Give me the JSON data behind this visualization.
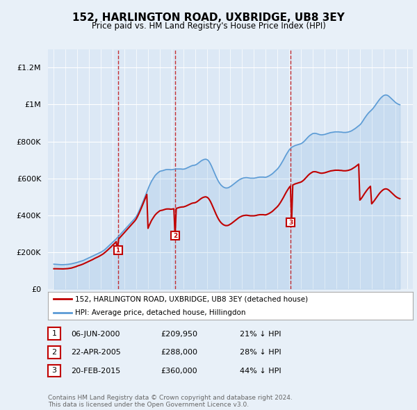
{
  "title": "152, HARLINGTON ROAD, UXBRIDGE, UB8 3EY",
  "subtitle": "Price paid vs. HM Land Registry's House Price Index (HPI)",
  "background_color": "#e8f0f8",
  "plot_bg_color": "#dce8f5",
  "legend_label_red": "152, HARLINGTON ROAD, UXBRIDGE, UB8 3EY (detached house)",
  "legend_label_blue": "HPI: Average price, detached house, Hillingdon",
  "footer": "Contains HM Land Registry data © Crown copyright and database right 2024.\nThis data is licensed under the Open Government Licence v3.0.",
  "transactions": [
    {
      "num": 1,
      "date": "06-JUN-2000",
      "price": 209950,
      "pct": "21%",
      "dir": "↓"
    },
    {
      "num": 2,
      "date": "22-APR-2005",
      "price": 288000,
      "pct": "28%",
      "dir": "↓"
    },
    {
      "num": 3,
      "date": "20-FEB-2015",
      "price": 360000,
      "pct": "44%",
      "dir": "↓"
    }
  ],
  "transaction_years": [
    2000.44,
    2005.31,
    2015.13
  ],
  "transaction_prices": [
    209950,
    288000,
    360000
  ],
  "hpi_values_by_year": {
    "1995": [
      135000,
      134500,
      134000,
      133500,
      133000,
      132500,
      132200,
      132000,
      132200,
      132500
    ],
    "1996": [
      133000,
      133500,
      134000,
      135000,
      136000,
      137000,
      138500,
      140000,
      141500,
      143000
    ],
    "1997": [
      145000,
      147000,
      149000,
      151000,
      153000,
      155000,
      158000,
      161000,
      164000,
      167000
    ],
    "1998": [
      170000,
      173000,
      176000,
      179000,
      182000,
      185000,
      188000,
      191000,
      194000,
      197000
    ],
    "1999": [
      200000,
      204000,
      208000,
      212000,
      218000,
      224000,
      230000,
      236000,
      242000,
      248000
    ],
    "2000": [
      254000,
      260000,
      266000,
      272000,
      279000,
      286000,
      293000,
      300000,
      307000,
      314000
    ],
    "2001": [
      321000,
      328000,
      335000,
      342000,
      349000,
      356000,
      363000,
      370000,
      377000,
      385000
    ],
    "2002": [
      393000,
      405000,
      418000,
      432000,
      447000,
      462000,
      478000,
      494000,
      510000,
      526000
    ],
    "2003": [
      542000,
      558000,
      572000,
      585000,
      595000,
      605000,
      615000,
      622000,
      628000,
      633000
    ],
    "2004": [
      638000,
      640000,
      641000,
      643000,
      645000,
      647000,
      648000,
      648000,
      648000,
      647000
    ],
    "2005": [
      647000,
      648000,
      649000,
      650000,
      651000,
      651000,
      651000,
      651000,
      651000,
      650000
    ],
    "2006": [
      650000,
      651000,
      653000,
      656000,
      659000,
      662000,
      665000,
      668000,
      670000,
      671000
    ],
    "2007": [
      672000,
      675000,
      679000,
      684000,
      689000,
      694000,
      698000,
      701000,
      703000,
      704000
    ],
    "2008": [
      702000,
      698000,
      690000,
      679000,
      666000,
      651000,
      636000,
      621000,
      607000,
      594000
    ],
    "2009": [
      582000,
      572000,
      564000,
      558000,
      553000,
      550000,
      548000,
      548000,
      549000,
      552000
    ],
    "2010": [
      556000,
      560000,
      565000,
      570000,
      575000,
      580000,
      585000,
      590000,
      594000,
      597000
    ],
    "2011": [
      600000,
      602000,
      603000,
      604000,
      604000,
      603000,
      602000,
      601000,
      601000,
      601000
    ],
    "2012": [
      601000,
      602000,
      603000,
      605000,
      606000,
      607000,
      607000,
      607000,
      607000,
      606000
    ],
    "2013": [
      606000,
      608000,
      611000,
      614000,
      618000,
      622000,
      627000,
      633000,
      639000,
      645000
    ],
    "2014": [
      651000,
      659000,
      668000,
      678000,
      689000,
      700000,
      712000,
      724000,
      735000,
      745000
    ],
    "2015": [
      755000,
      762000,
      768000,
      772000,
      775000,
      778000,
      780000,
      782000,
      784000,
      786000
    ],
    "2016": [
      788000,
      792000,
      797000,
      803000,
      810000,
      817000,
      824000,
      830000,
      835000,
      839000
    ],
    "2017": [
      843000,
      844000,
      844000,
      843000,
      841000,
      839000,
      837000,
      836000,
      836000,
      837000
    ],
    "2018": [
      838000,
      840000,
      842000,
      844000,
      846000,
      848000,
      849000,
      850000,
      851000,
      852000
    ],
    "2019": [
      852000,
      852000,
      852000,
      851000,
      851000,
      850000,
      849000,
      849000,
      849000,
      850000
    ],
    "2020": [
      851000,
      853000,
      855000,
      858000,
      862000,
      866000,
      870000,
      875000,
      880000,
      885000
    ],
    "2021": [
      890000,
      897000,
      906000,
      916000,
      926000,
      935000,
      944000,
      952000,
      959000,
      965000
    ],
    "2022": [
      971000,
      978000,
      986000,
      995000,
      1004000,
      1013000,
      1022000,
      1030000,
      1037000,
      1043000
    ],
    "2023": [
      1048000,
      1051000,
      1052000,
      1051000,
      1048000,
      1043000,
      1037000,
      1031000,
      1025000,
      1019000
    ],
    "2024": [
      1013000,
      1008000,
      1004000,
      1001000,
      999000
    ]
  },
  "red_values_by_year": {
    "1995": [
      110000,
      110200,
      110000,
      109800,
      109500,
      109200,
      109000,
      109000,
      109200,
      109500
    ],
    "1996": [
      110000,
      110500,
      111000,
      112000,
      113000,
      114000,
      116000,
      118000,
      120000,
      122000
    ],
    "1997": [
      125000,
      127000,
      129000,
      131000,
      133500,
      136000,
      139000,
      142000,
      145000,
      148000
    ],
    "1998": [
      151000,
      154000,
      157000,
      160000,
      163500,
      167000,
      170000,
      173000,
      176000,
      179500
    ],
    "1999": [
      183000,
      187000,
      191000,
      196000,
      201500,
      207000,
      213000,
      219000,
      225000,
      231000
    ],
    "2000": [
      238000,
      244000,
      250000,
      257000,
      209950,
      271000,
      278000,
      285000,
      292000,
      299000
    ],
    "2001": [
      306500,
      314000,
      321000,
      328000,
      335000,
      342000,
      349000,
      356000,
      363500,
      371000
    ],
    "2002": [
      380000,
      392000,
      405000,
      419000,
      434000,
      449000,
      465000,
      481000,
      497000,
      513000
    ],
    "2003": [
      329000,
      345000,
      359000,
      372000,
      382000,
      392000,
      401000,
      408000,
      414000,
      419000
    ],
    "2004": [
      424000,
      426000,
      427000,
      429000,
      431000,
      433000,
      434000,
      434000,
      434000,
      433000
    ],
    "2005": [
      433000,
      434000,
      435000,
      288000,
      437000,
      439000,
      441000,
      443000,
      444000,
      445000
    ],
    "2006": [
      445000,
      447000,
      449000,
      452000,
      455000,
      458000,
      461000,
      464000,
      466000,
      467000
    ],
    "2007": [
      468000,
      471000,
      475000,
      480000,
      485000,
      490000,
      494000,
      497000,
      499000,
      500000
    ],
    "2008": [
      498000,
      494000,
      486000,
      475000,
      462000,
      447000,
      432000,
      417000,
      403000,
      390000
    ],
    "2009": [
      378000,
      368000,
      360000,
      354000,
      349000,
      346000,
      344000,
      344000,
      345000,
      348000
    ],
    "2010": [
      352000,
      356000,
      361000,
      366000,
      371000,
      376000,
      381000,
      386000,
      390000,
      393000
    ],
    "2011": [
      396000,
      398000,
      399000,
      400000,
      400000,
      399000,
      398000,
      397000,
      397000,
      397000
    ],
    "2012": [
      397000,
      398000,
      399000,
      401000,
      402000,
      403000,
      403000,
      403000,
      403000,
      402000
    ],
    "2013": [
      402000,
      404000,
      407000,
      410000,
      414000,
      418000,
      423000,
      429000,
      435000,
      441000
    ],
    "2014": [
      447000,
      455000,
      464000,
      474000,
      485000,
      496000,
      508000,
      520000,
      531000,
      541000
    ],
    "2015": [
      551000,
      558000,
      360000,
      564000,
      567000,
      570000,
      572000,
      574000,
      576000,
      578000
    ],
    "2016": [
      580000,
      584000,
      589000,
      595000,
      602000,
      609000,
      616000,
      622000,
      627000,
      631000
    ],
    "2017": [
      635000,
      636000,
      636000,
      635000,
      633000,
      631000,
      629000,
      628000,
      628000,
      629000
    ],
    "2018": [
      630000,
      632000,
      634000,
      636000,
      638000,
      640000,
      641000,
      642000,
      643000,
      644000
    ],
    "2019": [
      644000,
      644000,
      644000,
      643000,
      643000,
      642000,
      641000,
      641000,
      641000,
      642000
    ],
    "2020": [
      643000,
      645000,
      647000,
      650000,
      654000,
      658000,
      662000,
      667000,
      672000,
      677000
    ],
    "2021": [
      482000,
      489000,
      498000,
      508000,
      518000,
      527000,
      536000,
      544000,
      551000,
      557000
    ],
    "2022": [
      462000,
      469000,
      477000,
      486000,
      495000,
      504000,
      513000,
      521000,
      528000,
      534000
    ],
    "2023": [
      539000,
      542000,
      543000,
      542000,
      539000,
      534000,
      528000,
      522000,
      516000,
      510000
    ],
    "2024": [
      504000,
      499000,
      495000,
      492000,
      490000
    ]
  }
}
